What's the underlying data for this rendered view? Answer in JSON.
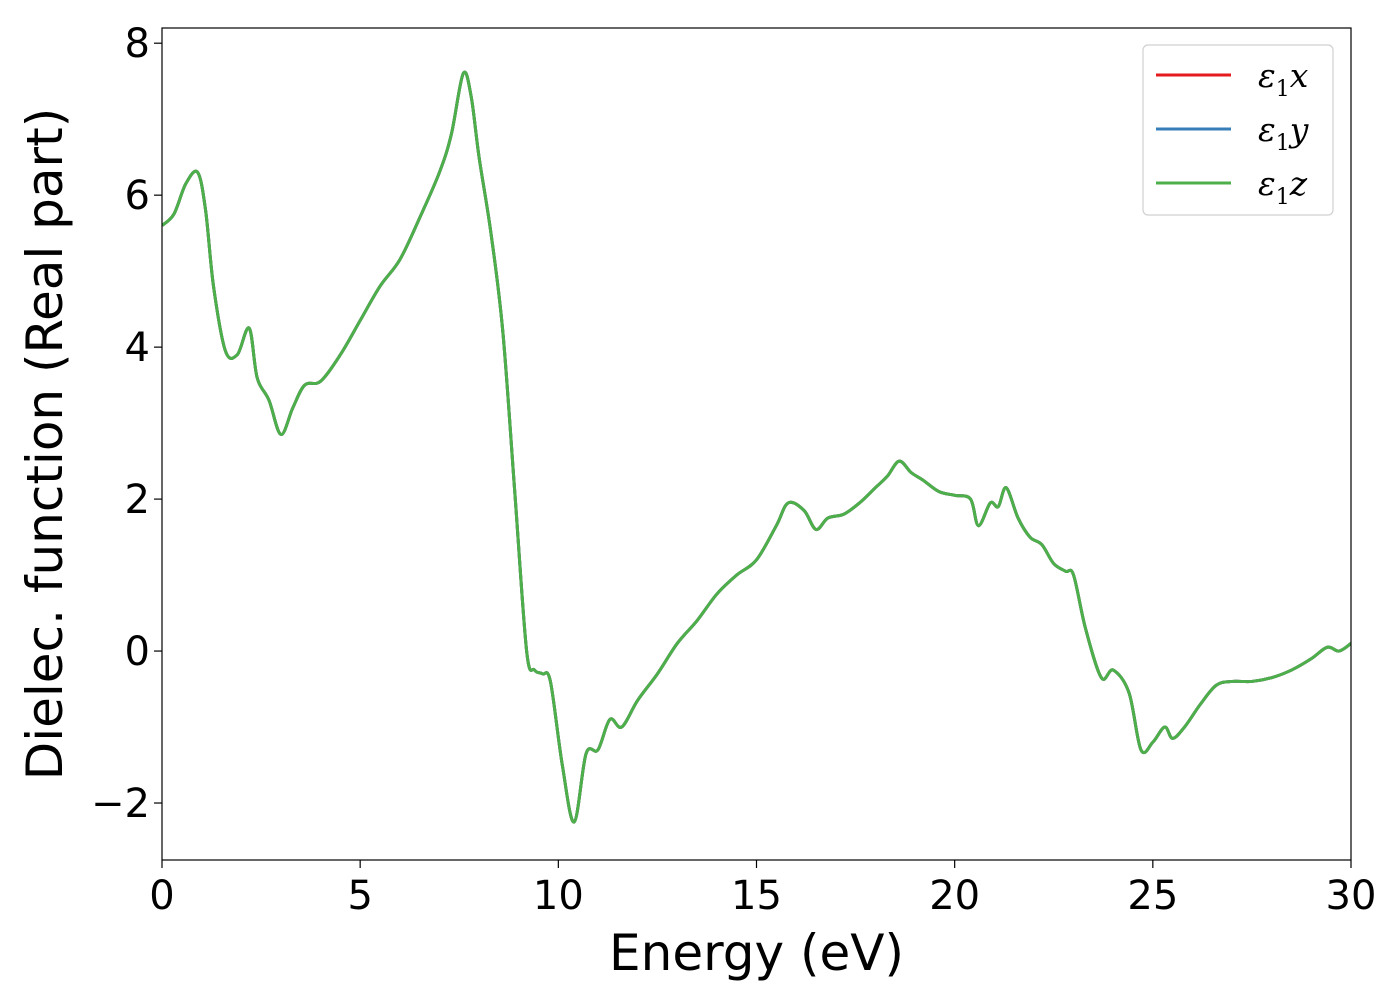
{
  "chart_data": {
    "type": "line",
    "xlabel": "Energy (eV)",
    "ylabel": "Dielec. function (Real part)",
    "xlim": [
      0,
      30
    ],
    "ylim": [
      -2.75,
      8.2
    ],
    "x_ticks": [
      0,
      5,
      10,
      15,
      20,
      25,
      30
    ],
    "x_tick_labels": [
      "0",
      "5",
      "10",
      "15",
      "20",
      "25",
      "30"
    ],
    "y_ticks": [
      -2,
      0,
      2,
      4,
      6,
      8
    ],
    "y_tick_labels": [
      "−2",
      "0",
      "2",
      "4",
      "6",
      "8"
    ],
    "grid": false,
    "legend_position": "top-right",
    "series": [
      {
        "name": "ε",
        "sub": "1",
        "suffix": "x",
        "color": "#e41a1c"
      },
      {
        "name": "ε",
        "sub": "1",
        "suffix": "y",
        "color": "#377eb8"
      },
      {
        "name": "ε",
        "sub": "1",
        "suffix": "z",
        "color": "#4daf4a"
      }
    ],
    "x": [
      0,
      0.3,
      0.6,
      0.9,
      1.1,
      1.3,
      1.6,
      1.9,
      2.2,
      2.4,
      2.7,
      3.0,
      3.3,
      3.6,
      4.0,
      4.5,
      5.0,
      5.5,
      6.0,
      6.5,
      7.0,
      7.3,
      7.6,
      7.8,
      8.0,
      8.3,
      8.6,
      8.9,
      9.2,
      9.4,
      9.6,
      9.8,
      10.1,
      10.4,
      10.7,
      11.0,
      11.3,
      11.6,
      12.0,
      12.5,
      13.0,
      13.5,
      14.0,
      14.5,
      15.0,
      15.5,
      15.8,
      16.2,
      16.5,
      16.8,
      17.2,
      17.6,
      18.0,
      18.3,
      18.6,
      18.9,
      19.2,
      19.6,
      20.0,
      20.4,
      20.6,
      20.9,
      21.1,
      21.3,
      21.6,
      21.9,
      22.2,
      22.5,
      22.8,
      23.0,
      23.3,
      23.7,
      24.0,
      24.4,
      24.7,
      25.0,
      25.3,
      25.5,
      25.8,
      26.2,
      26.6,
      27.0,
      27.5,
      28.0,
      28.5,
      29.0,
      29.4,
      29.7,
      30.0
    ],
    "values_shared": [
      5.6,
      5.75,
      6.15,
      6.3,
      5.8,
      4.8,
      3.95,
      3.9,
      4.25,
      3.6,
      3.3,
      2.85,
      3.2,
      3.5,
      3.55,
      3.9,
      4.35,
      4.8,
      5.15,
      5.7,
      6.3,
      6.8,
      7.6,
      7.3,
      6.5,
      5.5,
      4.2,
      2.1,
      0.0,
      -0.25,
      -0.3,
      -0.4,
      -1.5,
      -2.25,
      -1.35,
      -1.3,
      -0.9,
      -1.0,
      -0.65,
      -0.3,
      0.1,
      0.4,
      0.75,
      1.0,
      1.2,
      1.65,
      1.95,
      1.85,
      1.6,
      1.75,
      1.8,
      1.95,
      2.15,
      2.3,
      2.5,
      2.35,
      2.25,
      2.1,
      2.05,
      2.0,
      1.65,
      1.95,
      1.9,
      2.15,
      1.75,
      1.5,
      1.4,
      1.15,
      1.05,
      1.0,
      0.3,
      -0.35,
      -0.25,
      -0.55,
      -1.3,
      -1.2,
      -1.0,
      -1.15,
      -1.0,
      -0.7,
      -0.45,
      -0.4,
      -0.4,
      -0.35,
      -0.25,
      -0.1,
      0.05,
      0.0,
      0.1
    ]
  }
}
